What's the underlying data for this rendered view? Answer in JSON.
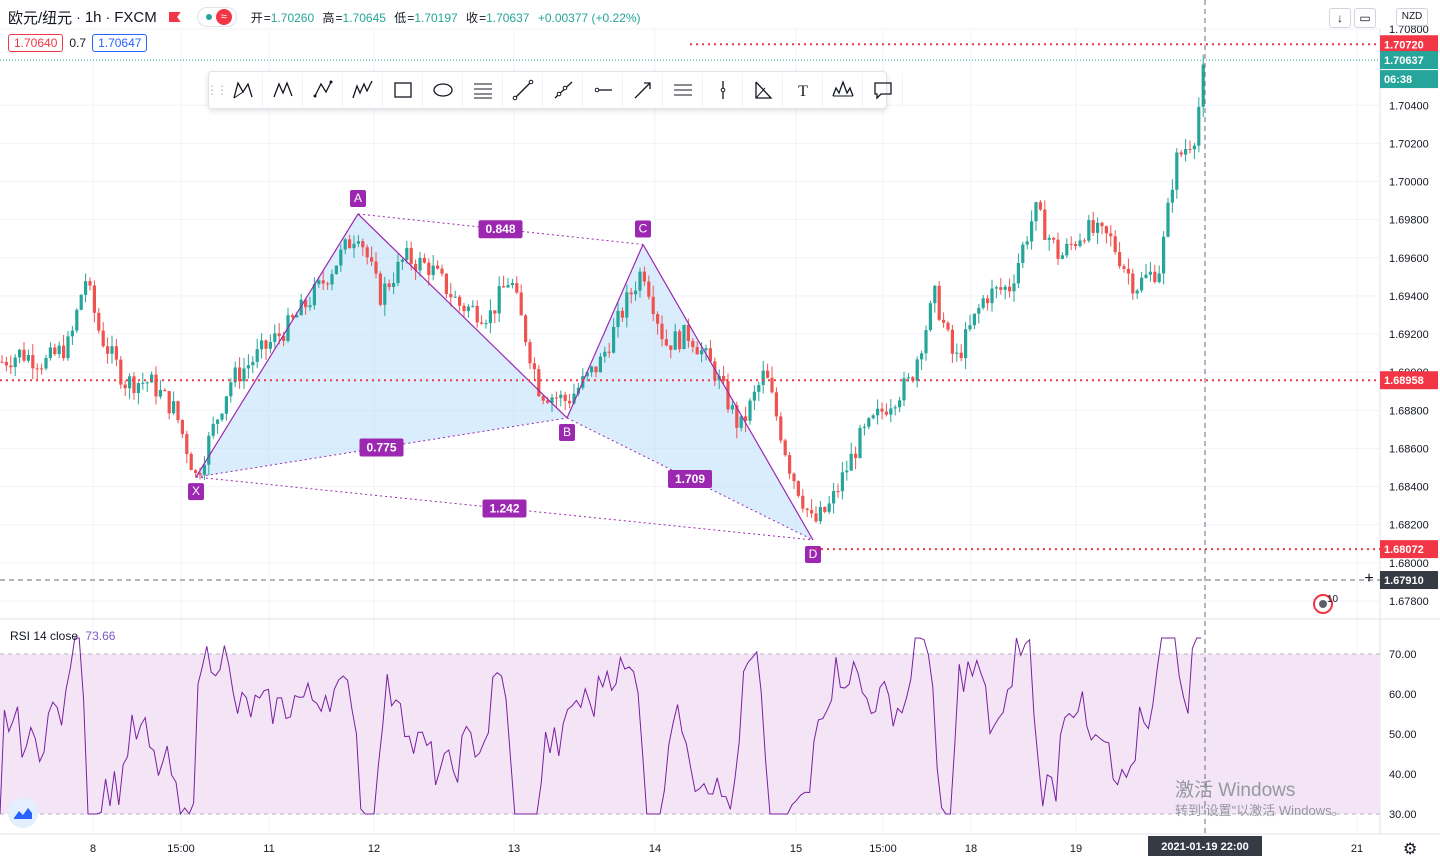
{
  "header": {
    "symbol": "欧元/纽元",
    "interval": "1h",
    "exchange": "FXCM",
    "ohlc": {
      "open_label": "开",
      "open": "1.70260",
      "high_label": "高",
      "high": "1.70645",
      "low_label": "低",
      "low": "1.70197",
      "close_label": "收",
      "close": "1.70637",
      "change": "+0.00377 (+0.22%)"
    },
    "bid": "1.70640",
    "spread": "0.7",
    "ask": "1.70647",
    "currency": "NZD"
  },
  "toolbar": {
    "tools": [
      "xabcd-pattern-icon",
      "cypher-pattern-icon",
      "abcd-pattern-icon",
      "three-drives-pattern-icon",
      "rectangle-icon",
      "ellipse-icon",
      "fib-retracement-icon",
      "trend-line-icon",
      "ray-icon",
      "horizontal-ray-icon",
      "arrow-icon",
      "parallel-channel-icon",
      "vertical-line-icon",
      "fib-fan-icon",
      "text-icon",
      "head-shoulders-icon",
      "callout-icon"
    ]
  },
  "colors": {
    "up": "#26a69a",
    "down": "#ef5350",
    "pattern_line": "#9c27b0",
    "pattern_fill": "#bbdefb",
    "label_bg": "#9c27b0",
    "red_line": "#f23645",
    "rsi_line": "#7b1fa2",
    "rsi_band": "#f3e5f5"
  },
  "chart_data": {
    "type": "candlestick",
    "price_axis": {
      "ylim": [
        1.678,
        1.708
      ],
      "ticks": [
        "1.70800",
        "1.70400",
        "1.70200",
        "1.70000",
        "1.69800",
        "1.69600",
        "1.69400",
        "1.69200",
        "1.69000",
        "1.68800",
        "1.68600",
        "1.68400",
        "1.68200",
        "1.68000",
        "1.67800"
      ],
      "tick_values": [
        1.708,
        1.704,
        1.702,
        1.7,
        1.698,
        1.696,
        1.694,
        1.692,
        1.69,
        1.688,
        1.686,
        1.684,
        1.682,
        1.68,
        1.678
      ],
      "price_labels": [
        {
          "value": 1.7072,
          "text": "1.70720",
          "style": "red"
        },
        {
          "value": 1.70637,
          "text": "1.70637",
          "style": "green"
        },
        {
          "value": null,
          "text": "06:38",
          "style": "green-sub"
        },
        {
          "value": 1.68958,
          "text": "1.68958",
          "style": "red"
        },
        {
          "value": 1.68072,
          "text": "1.68072",
          "style": "red"
        },
        {
          "value": 1.6791,
          "text": "1.67910",
          "style": "crosshair"
        }
      ]
    },
    "time_axis": {
      "labels": [
        "8",
        "15:00",
        "11",
        "12",
        "13",
        "14",
        "15",
        "15:00",
        "18",
        "19",
        "2021-01-19   22:00",
        "21"
      ]
    },
    "horizontal_lines": [
      1.7072,
      1.68958,
      1.68072
    ],
    "crosshair_price": 1.6791,
    "pattern": {
      "name": "XABCD",
      "points": [
        {
          "label": "X",
          "price": 1.6845
        },
        {
          "label": "A",
          "price": 1.6983
        },
        {
          "label": "B",
          "price": 1.6876
        },
        {
          "label": "C",
          "price": 1.6967
        },
        {
          "label": "D",
          "price": 1.6812
        }
      ],
      "ratios": [
        "0.848",
        "0.775",
        "1.709",
        "1.242"
      ]
    },
    "rsi": {
      "label": "RSI 14 close",
      "value": "73.66",
      "ylim": [
        25,
        80
      ],
      "ticks": [
        "70.00",
        "60.00",
        "50.00",
        "40.00",
        "30.00"
      ],
      "tick_values": [
        70,
        60,
        50,
        40,
        30
      ],
      "band": [
        30,
        70
      ]
    },
    "last_close": 1.70637,
    "time_badge": "06:38"
  },
  "misc": {
    "notification_count": "10",
    "watermark_line1": "激活 Windows",
    "watermark_line2": "转到\"设置\"以激活 Windows。"
  }
}
